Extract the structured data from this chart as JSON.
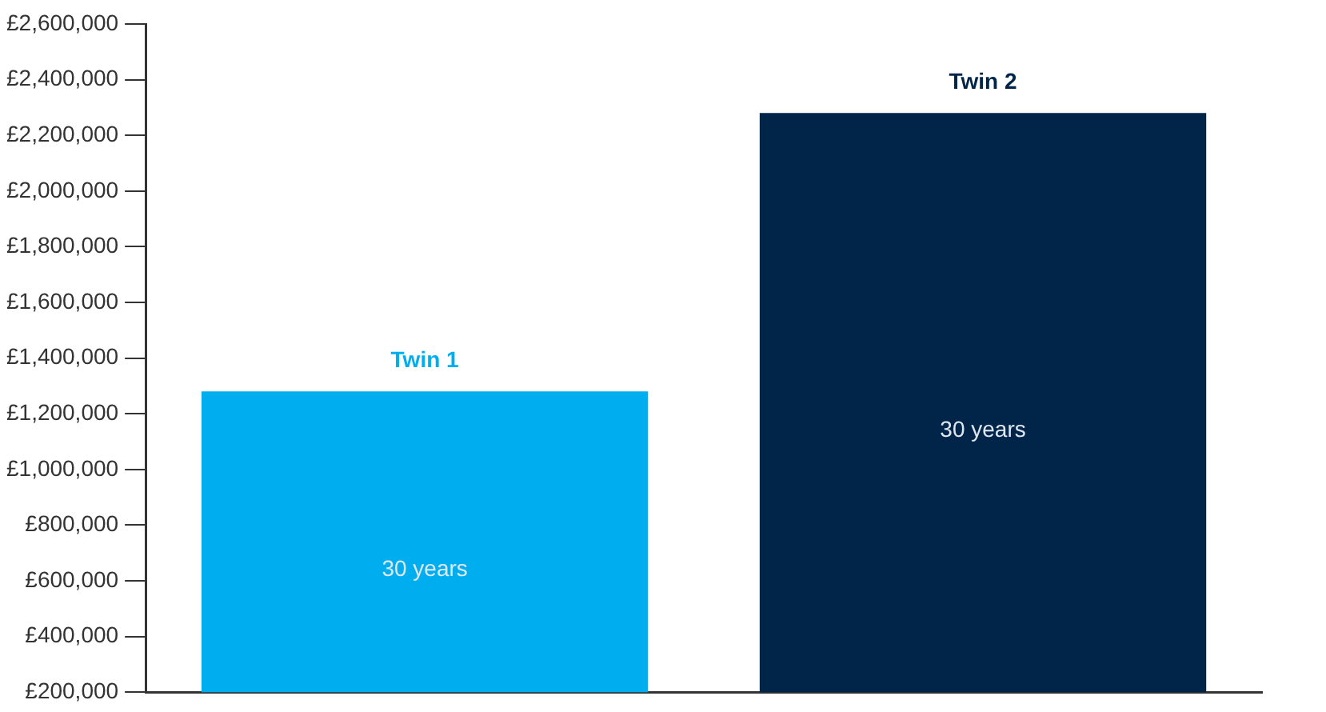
{
  "chart_data": {
    "type": "bar",
    "categories": [
      "Twin 1",
      "Twin 2"
    ],
    "values": [
      1280000,
      2280000
    ],
    "colors": [
      "#00aeef",
      "#002549"
    ],
    "ylim": [
      200000,
      2600000
    ],
    "yticks": [
      {
        "value": 200000,
        "label": "£200,000"
      },
      {
        "value": 400000,
        "label": "£400,000"
      },
      {
        "value": 600000,
        "label": "£600,000"
      },
      {
        "value": 800000,
        "label": "£800,000"
      },
      {
        "value": 1000000,
        "label": "£1,000,000"
      },
      {
        "value": 1200000,
        "label": "£1,200,000"
      },
      {
        "value": 1400000,
        "label": "£1,400,000"
      },
      {
        "value": 1600000,
        "label": "£1,600,000"
      },
      {
        "value": 1800000,
        "label": "£1,800,000"
      },
      {
        "value": 2000000,
        "label": "£2,000,000"
      },
      {
        "value": 2200000,
        "label": "£2,200,000"
      },
      {
        "value": 2400000,
        "label": "£2,400,000"
      },
      {
        "value": 2600000,
        "label": "£2,600,000"
      }
    ],
    "annotations": [
      "30 years",
      "30 years"
    ],
    "grid": false,
    "legend": false
  }
}
